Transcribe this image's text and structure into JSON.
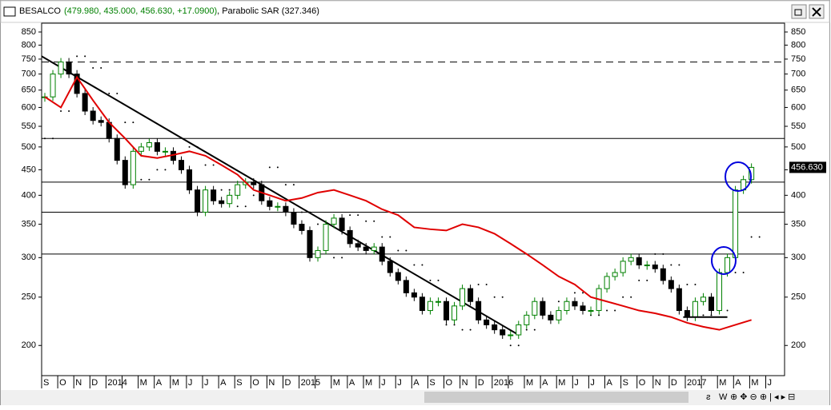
{
  "chart_data": {
    "type": "candlestick",
    "title": "BESALCO",
    "title_values": "(479.980, 435.000, 456.630, +17.0900)",
    "title_indicator": ", Parabolic SAR (327.346)",
    "last_price_label": "456.630",
    "log_scale": true,
    "ylim": [
      174,
      882
    ],
    "yticks": [
      850,
      800,
      750,
      700,
      650,
      600,
      550,
      500,
      450,
      400,
      350,
      300,
      250,
      200
    ],
    "months": [
      "S",
      "O",
      "N",
      "D",
      "2014",
      null,
      "M",
      "A",
      "M",
      "J",
      "J",
      "A",
      "S",
      "O",
      "N",
      "D",
      "2015",
      null,
      "M",
      "A",
      "M",
      "J",
      "J",
      "A",
      "S",
      "O",
      "N",
      "D",
      "2016",
      null,
      "M",
      "A",
      "M",
      "J",
      "J",
      "A",
      "S",
      "O",
      "N",
      "D",
      "2017",
      null,
      "M",
      "A",
      "M",
      "J"
    ],
    "up_color": "#008000",
    "down_color": "#000000",
    "closes": [
      630,
      700,
      740,
      700,
      640,
      590,
      565,
      560,
      520,
      470,
      420,
      490,
      500,
      510,
      490,
      490,
      470,
      450,
      410,
      370,
      410,
      390,
      385,
      400,
      420,
      425,
      420,
      390,
      380,
      380,
      370,
      350,
      340,
      300,
      310,
      350,
      360,
      340,
      320,
      315,
      310,
      315,
      295,
      280,
      270,
      255,
      250,
      235,
      245,
      245,
      225,
      240,
      260,
      245,
      225,
      220,
      215,
      210,
      210,
      220,
      230,
      245,
      230,
      225,
      235,
      245,
      240,
      235,
      235,
      260,
      275,
      280,
      295,
      300,
      290,
      290,
      285,
      270,
      260,
      235,
      228,
      245,
      250,
      235,
      280,
      300,
      410,
      430,
      455
    ],
    "moving_average": {
      "color": "#e00000",
      "values": [
        630,
        600,
        690,
        620,
        560,
        520,
        480,
        475,
        482,
        490,
        480,
        460,
        440,
        410,
        400,
        390,
        395,
        405,
        410,
        400,
        390,
        375,
        365,
        345,
        342,
        340,
        350,
        345,
        335,
        320,
        305,
        290,
        275,
        265,
        250,
        245,
        240,
        235,
        232,
        228,
        222,
        218,
        215,
        220,
        225
      ]
    },
    "sar": {
      "color": "#000000",
      "values": [
        520,
        590,
        760,
        720,
        640,
        560,
        430,
        450,
        470,
        500,
        460,
        410,
        380,
        400,
        455,
        420,
        370,
        350,
        300,
        365,
        355,
        330,
        310,
        290,
        270,
        220,
        215,
        265,
        250,
        200,
        215,
        230,
        245,
        255,
        230,
        235,
        250,
        270,
        305,
        290,
        265,
        230,
        235,
        280,
        330
      ]
    },
    "levels": [
      {
        "value": 740,
        "dashed": true
      },
      {
        "value": 520,
        "dashed": false
      },
      {
        "value": 425,
        "dashed": false
      },
      {
        "value": 370,
        "dashed": false
      },
      {
        "value": 305,
        "dashed": false
      }
    ],
    "trendline": [
      760,
      210
    ],
    "support": 228,
    "scroll_label": "W"
  }
}
